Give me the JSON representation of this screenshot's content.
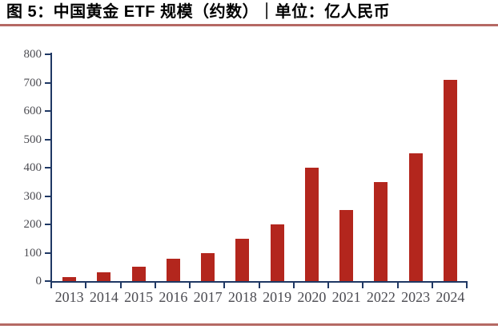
{
  "header": {
    "title": "图 5：中国黄金 ETF 规模（约数）｜单位：亿人民币"
  },
  "colors": {
    "background": "#ffffff",
    "bar": "#b3261d",
    "axis": "#1f3864",
    "tick_label": "#4c4c52",
    "rule": "#b56964",
    "title_text": "#000000"
  },
  "chart_data": {
    "type": "bar",
    "title": "图 5：中国黄金 ETF 规模（约数）｜单位：亿人民币",
    "categories": [
      "2013",
      "2014",
      "2015",
      "2016",
      "2017",
      "2018",
      "2019",
      "2020",
      "2021",
      "2022",
      "2023",
      "2024"
    ],
    "values": [
      15,
      30,
      50,
      80,
      100,
      150,
      200,
      400,
      250,
      350,
      450,
      710
    ],
    "xlabel": "",
    "ylabel": "",
    "ylim": [
      0,
      800
    ],
    "yticks": [
      0,
      100,
      200,
      300,
      400,
      500,
      600,
      700,
      800
    ],
    "grid": false,
    "legend": false
  }
}
